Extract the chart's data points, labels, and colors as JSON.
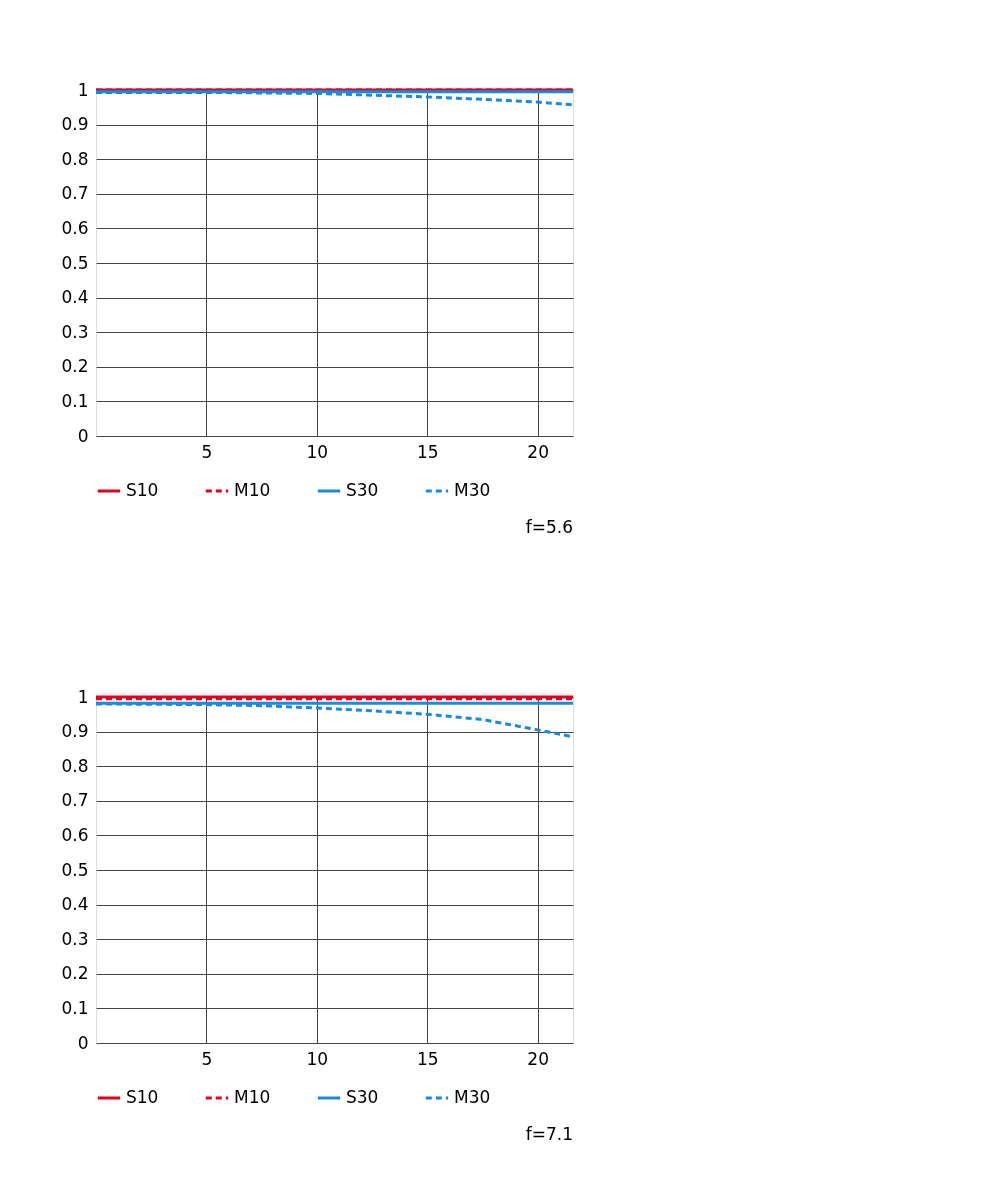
{
  "chart_data": [
    {
      "type": "line",
      "xlim": [
        0,
        21.6
      ],
      "ylim": [
        0,
        1
      ],
      "xticks": [
        5,
        10,
        15,
        20
      ],
      "yticks": [
        0,
        0.1,
        0.2,
        0.3,
        0.4,
        0.5,
        0.6,
        0.7,
        0.8,
        0.9,
        1
      ],
      "grid": true,
      "legend": "bottom",
      "annotations": [
        "f=5.6"
      ],
      "series": [
        {
          "name": "S10",
          "color": "#e3001b",
          "line_style": "solid",
          "x": [
            0,
            21.6
          ],
          "values": [
            1.0,
            1.0
          ]
        },
        {
          "name": "M10",
          "color": "#e3001b",
          "line_style": "dashed",
          "x": [
            0,
            21.6
          ],
          "values": [
            1.0,
            1.0
          ]
        },
        {
          "name": "S30",
          "color": "#1a8ae0",
          "line_style": "solid",
          "x": [
            0,
            21.6
          ],
          "values": [
            0.995,
            0.995
          ]
        },
        {
          "name": "M30",
          "color": "#1a8ae0",
          "line_style": "dashed",
          "x": [
            0,
            5,
            10,
            12.5,
            15,
            17.5,
            20,
            21.6
          ],
          "values": [
            0.993,
            0.993,
            0.99,
            0.985,
            0.98,
            0.973,
            0.965,
            0.957
          ]
        }
      ]
    },
    {
      "type": "line",
      "xlim": [
        0,
        21.6
      ],
      "ylim": [
        0,
        1
      ],
      "xticks": [
        5,
        10,
        15,
        20
      ],
      "yticks": [
        0,
        0.1,
        0.2,
        0.3,
        0.4,
        0.5,
        0.6,
        0.7,
        0.8,
        0.9,
        1
      ],
      "grid": true,
      "legend": "bottom",
      "annotations": [
        "f=7.1"
      ],
      "series": [
        {
          "name": "S10",
          "color": "#e3001b",
          "line_style": "solid",
          "x": [
            0,
            21.6
          ],
          "values": [
            1.0,
            1.0
          ]
        },
        {
          "name": "M10",
          "color": "#e3001b",
          "line_style": "dashed",
          "x": [
            0,
            21.6
          ],
          "values": [
            0.995,
            0.995
          ]
        },
        {
          "name": "S30",
          "color": "#1a8ae0",
          "line_style": "solid",
          "x": [
            0,
            21.6
          ],
          "values": [
            0.982,
            0.982
          ]
        },
        {
          "name": "M30",
          "color": "#1a8ae0",
          "line_style": "dashed",
          "x": [
            0,
            5,
            7.5,
            10,
            12.5,
            15,
            17.5,
            20,
            21.6
          ],
          "values": [
            0.98,
            0.978,
            0.975,
            0.968,
            0.96,
            0.95,
            0.935,
            0.905,
            0.885
          ]
        }
      ]
    }
  ]
}
